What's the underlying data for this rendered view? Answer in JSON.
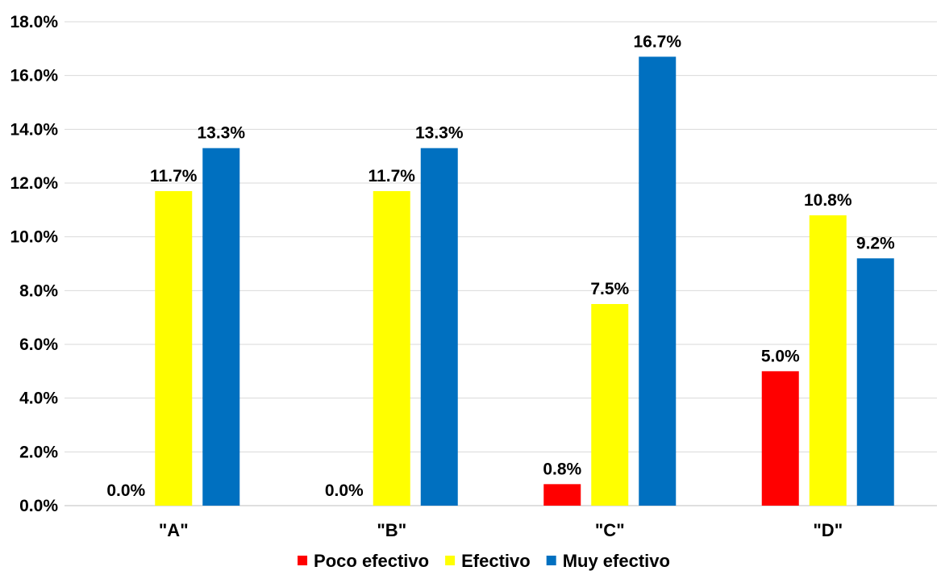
{
  "chart_data": {
    "type": "bar",
    "categories": [
      "\"A\"",
      "\"B\"",
      "\"C\"",
      "\"D\""
    ],
    "series": [
      {
        "name": "Poco efectivo",
        "color": "#ff0000",
        "values": [
          0.0,
          0.0,
          0.8,
          5.0
        ],
        "labels": [
          "0.0%",
          "0.0%",
          "0.8%",
          "5.0%"
        ]
      },
      {
        "name": "Efectivo",
        "color": "#ffff00",
        "values": [
          11.7,
          11.7,
          7.5,
          10.8
        ],
        "labels": [
          "11.7%",
          "11.7%",
          "7.5%",
          "10.8%"
        ]
      },
      {
        "name": "Muy efectivo",
        "color": "#0070c0",
        "values": [
          13.3,
          13.3,
          16.7,
          9.2
        ],
        "labels": [
          "13.3%",
          "13.3%",
          "16.7%",
          "9.2%"
        ]
      }
    ],
    "y_ticks": [
      "0.0%",
      "2.0%",
      "4.0%",
      "6.0%",
      "8.0%",
      "10.0%",
      "12.0%",
      "14.0%",
      "16.0%",
      "18.0%"
    ],
    "ylim": [
      0,
      18
    ],
    "grid": true,
    "legend_position": "bottom",
    "title": "",
    "xlabel": "",
    "ylabel": ""
  }
}
